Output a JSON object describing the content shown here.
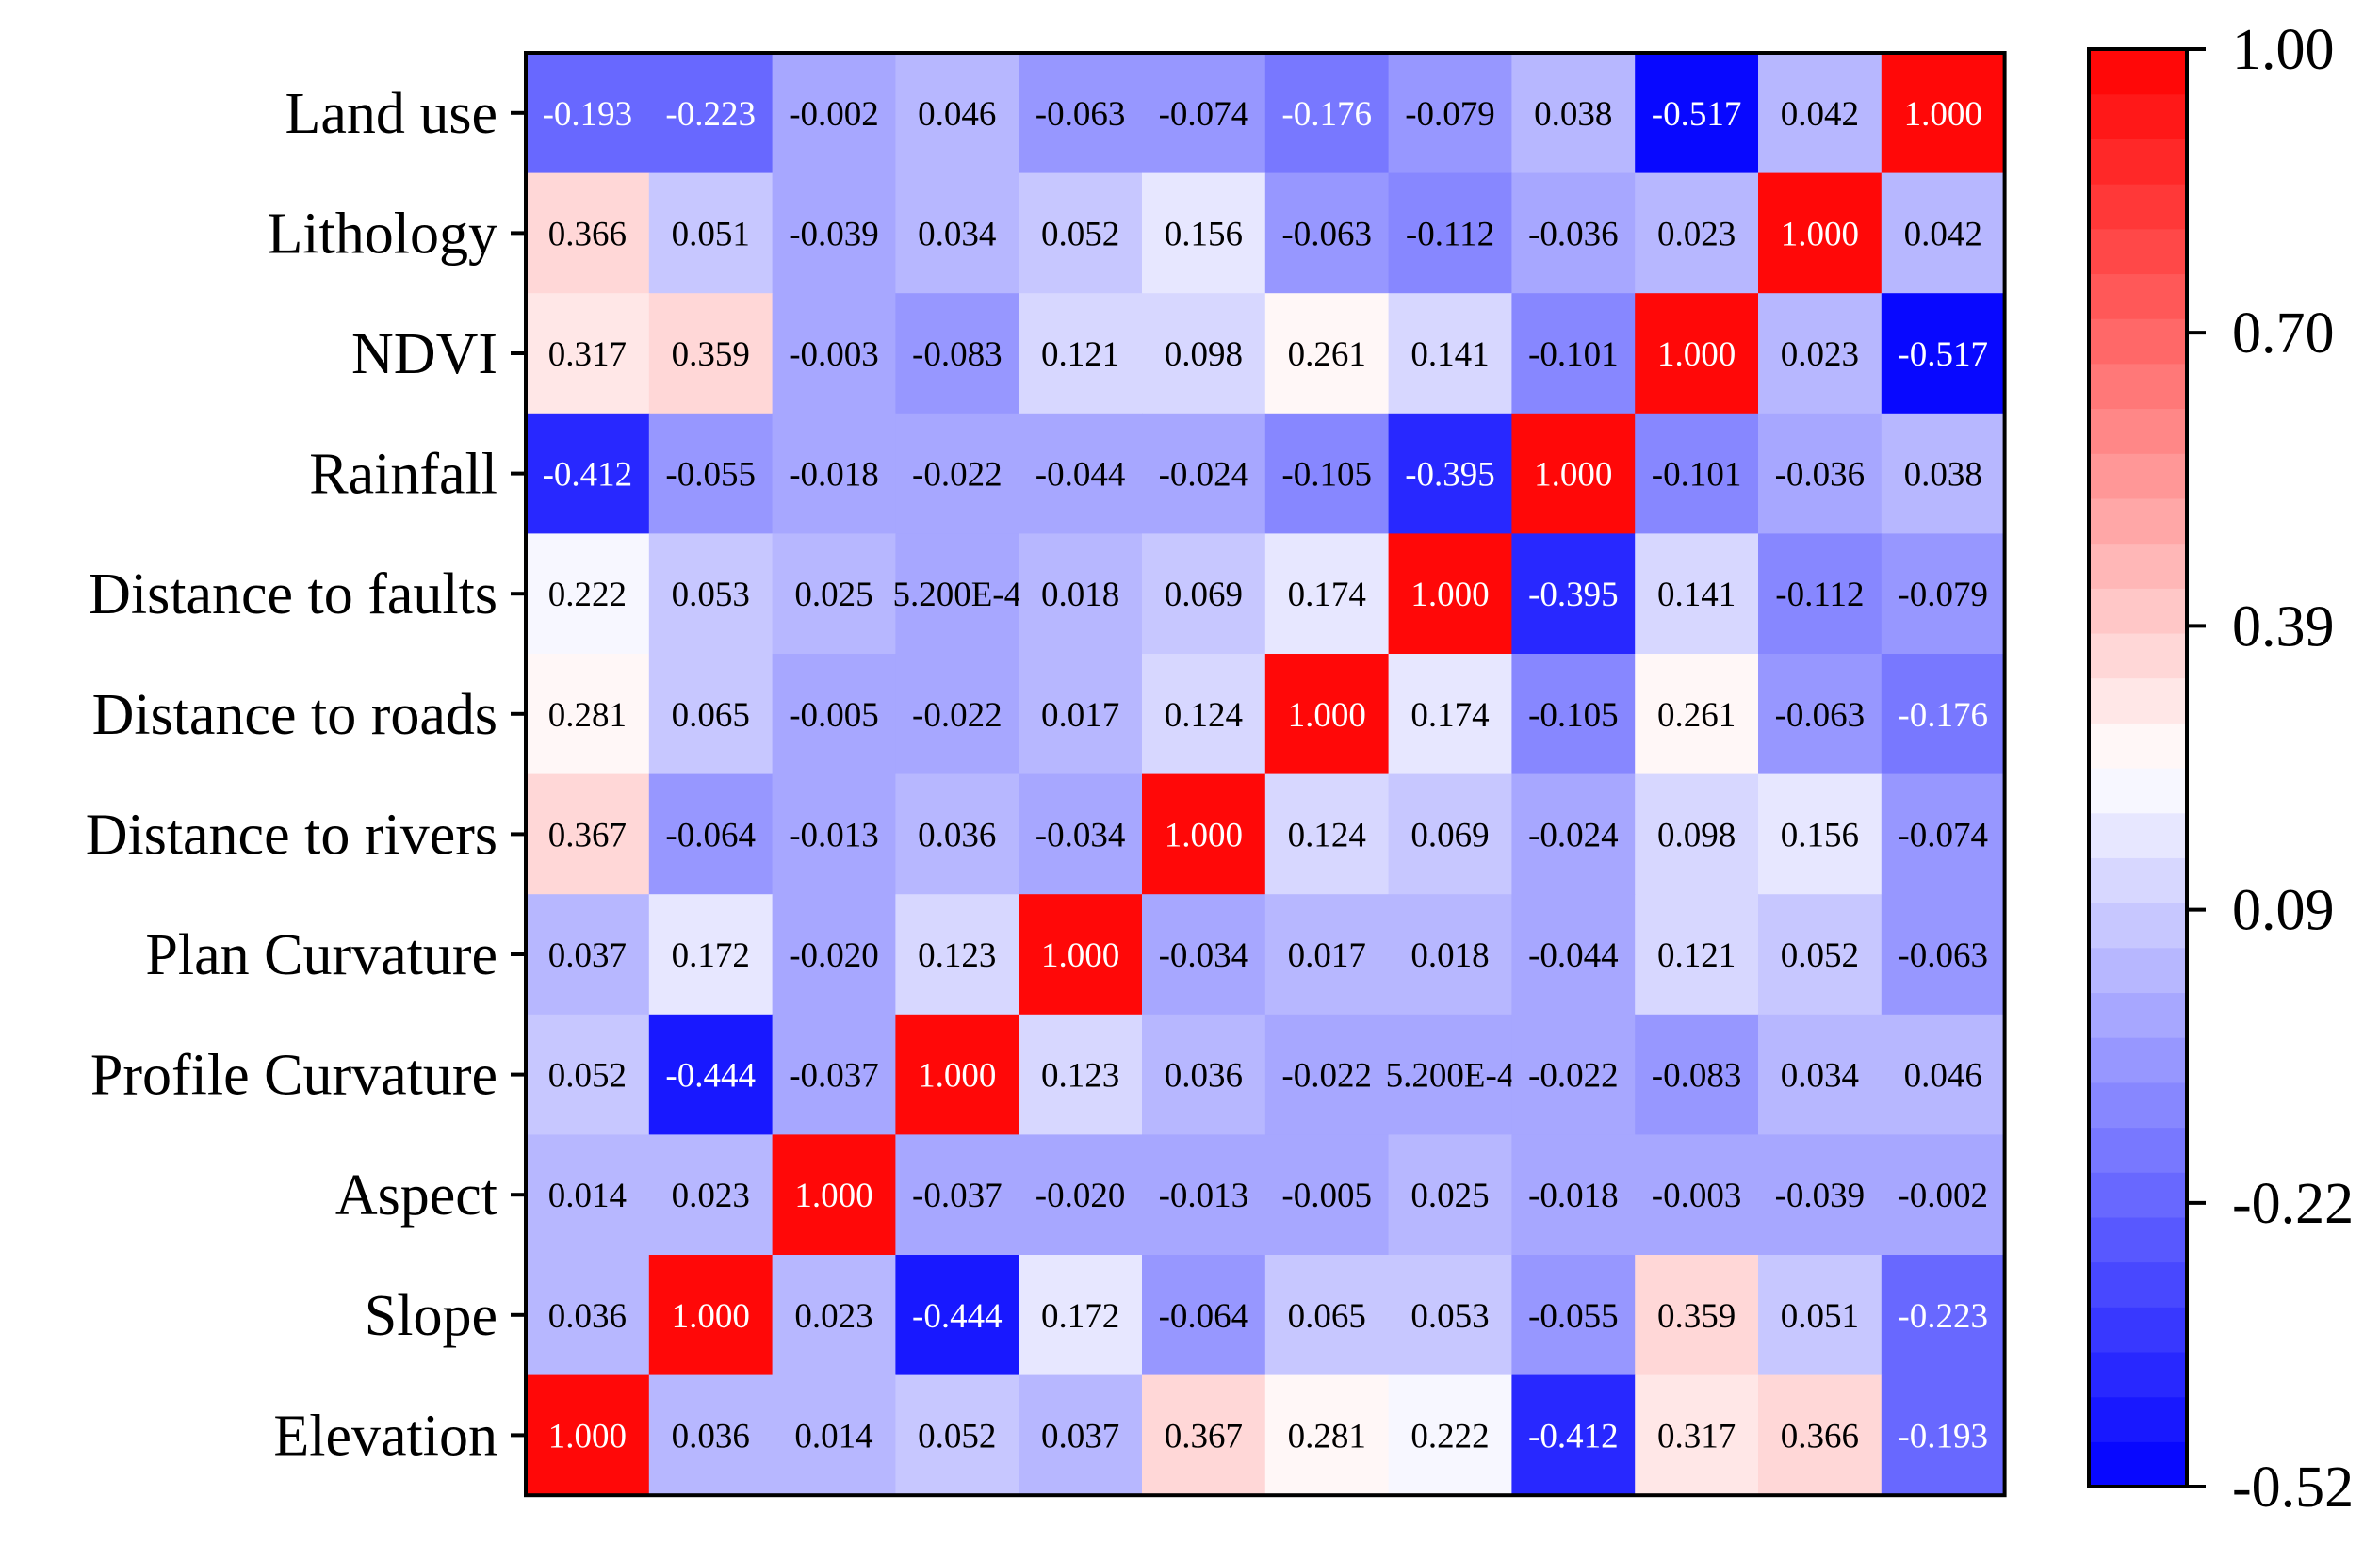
{
  "chart_data": {
    "type": "heatmap",
    "title": "",
    "xlabel": "",
    "ylabel": "",
    "rows": [
      "Land use",
      "Lithology",
      "NDVI",
      "Rainfall",
      "Distance to faults",
      "Distance to roads",
      "Distance to rivers",
      "Plan Curvature",
      "Profile Curvature",
      "Aspect",
      "Slope",
      "Elevation"
    ],
    "values": [
      [
        "-0.193",
        "-0.223",
        "-0.002",
        "0.046",
        "-0.063",
        "-0.074",
        "-0.176",
        "-0.079",
        "0.038",
        "-0.517",
        "0.042",
        "1.000"
      ],
      [
        "0.366",
        "0.051",
        "-0.039",
        "0.034",
        "0.052",
        "0.156",
        "-0.063",
        "-0.112",
        "-0.036",
        "0.023",
        "1.000",
        "0.042"
      ],
      [
        "0.317",
        "0.359",
        "-0.003",
        "-0.083",
        "0.121",
        "0.098",
        "0.261",
        "0.141",
        "-0.101",
        "1.000",
        "0.023",
        "-0.517"
      ],
      [
        "-0.412",
        "-0.055",
        "-0.018",
        "-0.022",
        "-0.044",
        "-0.024",
        "-0.105",
        "-0.395",
        "1.000",
        "-0.101",
        "-0.036",
        "0.038"
      ],
      [
        "0.222",
        "0.053",
        "0.025",
        "5.200E-4",
        "0.018",
        "0.069",
        "0.174",
        "1.000",
        "-0.395",
        "0.141",
        "-0.112",
        "-0.079"
      ],
      [
        "0.281",
        "0.065",
        "-0.005",
        "-0.022",
        "0.017",
        "0.124",
        "1.000",
        "0.174",
        "-0.105",
        "0.261",
        "-0.063",
        "-0.176"
      ],
      [
        "0.367",
        "-0.064",
        "-0.013",
        "0.036",
        "-0.034",
        "1.000",
        "0.124",
        "0.069",
        "-0.024",
        "0.098",
        "0.156",
        "-0.074"
      ],
      [
        "0.037",
        "0.172",
        "-0.020",
        "0.123",
        "1.000",
        "-0.034",
        "0.017",
        "0.018",
        "-0.044",
        "0.121",
        "0.052",
        "-0.063"
      ],
      [
        "0.052",
        "-0.444",
        "-0.037",
        "1.000",
        "0.123",
        "0.036",
        "-0.022",
        "5.200E-4",
        "-0.022",
        "-0.083",
        "0.034",
        "0.046"
      ],
      [
        "0.014",
        "0.023",
        "1.000",
        "-0.037",
        "-0.020",
        "-0.013",
        "-0.005",
        "0.025",
        "-0.018",
        "-0.003",
        "-0.039",
        "-0.002"
      ],
      [
        "0.036",
        "1.000",
        "0.023",
        "-0.444",
        "0.172",
        "-0.064",
        "0.065",
        "0.053",
        "-0.055",
        "0.359",
        "0.051",
        "-0.223"
      ],
      [
        "1.000",
        "0.036",
        "0.014",
        "0.052",
        "0.037",
        "0.367",
        "0.281",
        "0.222",
        "-0.412",
        "0.317",
        "0.366",
        "-0.193"
      ]
    ],
    "colorbar": {
      "min": -0.52,
      "max": 1.0,
      "tick_labels": [
        "1.00",
        "0.70",
        "0.39",
        "0.09",
        "-0.22",
        "-0.52"
      ],
      "tick_values": [
        1.0,
        0.7,
        0.39,
        0.09,
        -0.22,
        -0.52
      ],
      "low_color": "#0000ff",
      "mid_color": "#ffffff",
      "high_color": "#ff0000",
      "mid_value": 0.24,
      "levels": 32
    }
  }
}
